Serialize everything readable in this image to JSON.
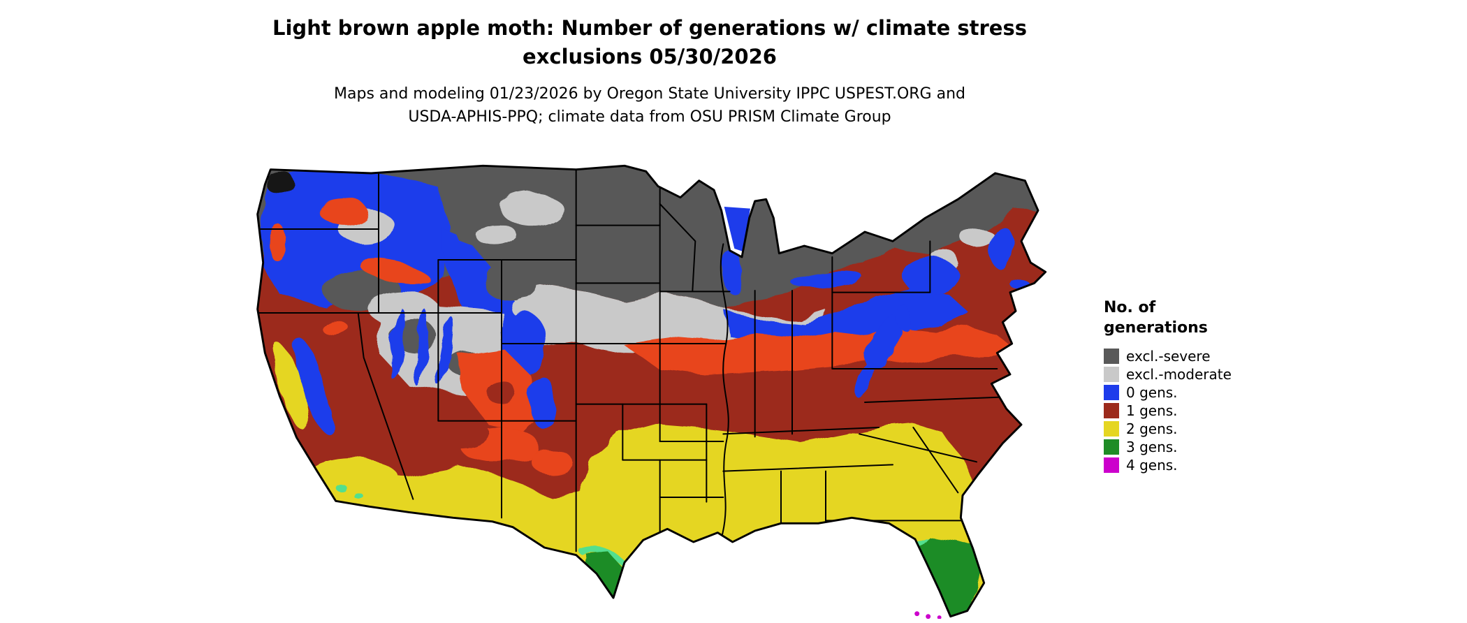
{
  "title": {
    "line1": "Light brown apple moth: Number of generations w/ climate stress",
    "line2": "exclusions 05/30/2026"
  },
  "subtitle": {
    "line1": "Maps and modeling 01/23/2026 by Oregon State University IPPC USPEST.ORG and",
    "line2": "USDA-APHIS-PPQ; climate data from OSU PRISM Climate Group"
  },
  "legend": {
    "title_line1": "No. of",
    "title_line2": "generations",
    "items": [
      {
        "key": "severe",
        "label": "excl.-severe",
        "color": "#595959"
      },
      {
        "key": "moderate",
        "label": "excl.-moderate",
        "color": "#c9c9c9"
      },
      {
        "key": "gens0",
        "label": "0 gens.",
        "color": "#1e3ceb"
      },
      {
        "key": "gens1",
        "label": "1 gens.",
        "color": "#9c2a1c"
      },
      {
        "key": "gens2",
        "label": "2 gens.",
        "color": "#e5d622"
      },
      {
        "key": "gens3",
        "label": "3 gens.",
        "color": "#1f8c26"
      },
      {
        "key": "gens4",
        "label": "4 gens.",
        "color": "#cc00cc"
      }
    ]
  },
  "map": {
    "region": "Contiguous United States",
    "extra_colors": {
      "orange_band": "#e8441a",
      "light_green": "#52df8e",
      "near_black": "#161616",
      "water_blue": "#1e3ceb",
      "border_black": "#000000"
    }
  }
}
